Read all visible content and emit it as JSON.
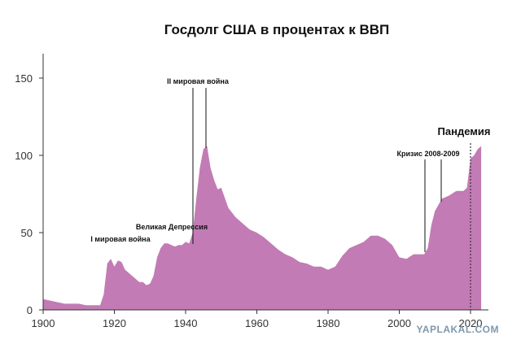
{
  "chart_data": {
    "type": "area",
    "title": "Госдолг США в процентах к ВВП",
    "xlabel": "",
    "ylabel": "",
    "xlim": [
      1900,
      2023
    ],
    "ylim": [
      0,
      160
    ],
    "x_ticks": [
      "1900",
      "1920",
      "1940",
      "1960",
      "1980",
      "2000",
      "2020"
    ],
    "y_ticks": [
      "0",
      "50",
      "100",
      "150"
    ],
    "grid": false,
    "color": "#c27bb5",
    "x": [
      1900,
      1902,
      1904,
      1906,
      1908,
      1910,
      1912,
      1914,
      1916,
      1917,
      1918,
      1919,
      1920,
      1921,
      1922,
      1923,
      1924,
      1925,
      1926,
      1927,
      1928,
      1929,
      1930,
      1931,
      1932,
      1933,
      1934,
      1935,
      1936,
      1937,
      1938,
      1939,
      1940,
      1941,
      1942,
      1943,
      1944,
      1945,
      1946,
      1947,
      1948,
      1949,
      1950,
      1952,
      1954,
      1956,
      1958,
      1960,
      1962,
      1964,
      1966,
      1968,
      1970,
      1972,
      1974,
      1976,
      1978,
      1980,
      1982,
      1984,
      1986,
      1988,
      1990,
      1992,
      1994,
      1996,
      1998,
      2000,
      2002,
      2004,
      2006,
      2007,
      2008,
      2009,
      2010,
      2011,
      2012,
      2014,
      2016,
      2018,
      2019,
      2020,
      2021,
      2022,
      2023
    ],
    "values": [
      7,
      6,
      5,
      4,
      4,
      4,
      3,
      3,
      3,
      10,
      30,
      33,
      28,
      32,
      31,
      26,
      24,
      22,
      20,
      18,
      18,
      16,
      17,
      22,
      34,
      40,
      43,
      43,
      42,
      41,
      42,
      42,
      44,
      43,
      50,
      72,
      92,
      104,
      106,
      92,
      84,
      78,
      79,
      66,
      60,
      56,
      52,
      50,
      47,
      43,
      39,
      36,
      34,
      31,
      30,
      28,
      28,
      26,
      28,
      35,
      40,
      42,
      44,
      48,
      48,
      46,
      42,
      34,
      33,
      36,
      36,
      36,
      40,
      55,
      64,
      68,
      72,
      74,
      77,
      77,
      79,
      98,
      100,
      104,
      106
    ]
  },
  "annotations": {
    "ww1": "I мировая война",
    "depression": "Великая Депрессия",
    "ww2": "II мировая война",
    "crisis": "Кризис 2008-2009",
    "pandemic": "Пандемия"
  },
  "watermark": "YAPLAKAL.COM"
}
